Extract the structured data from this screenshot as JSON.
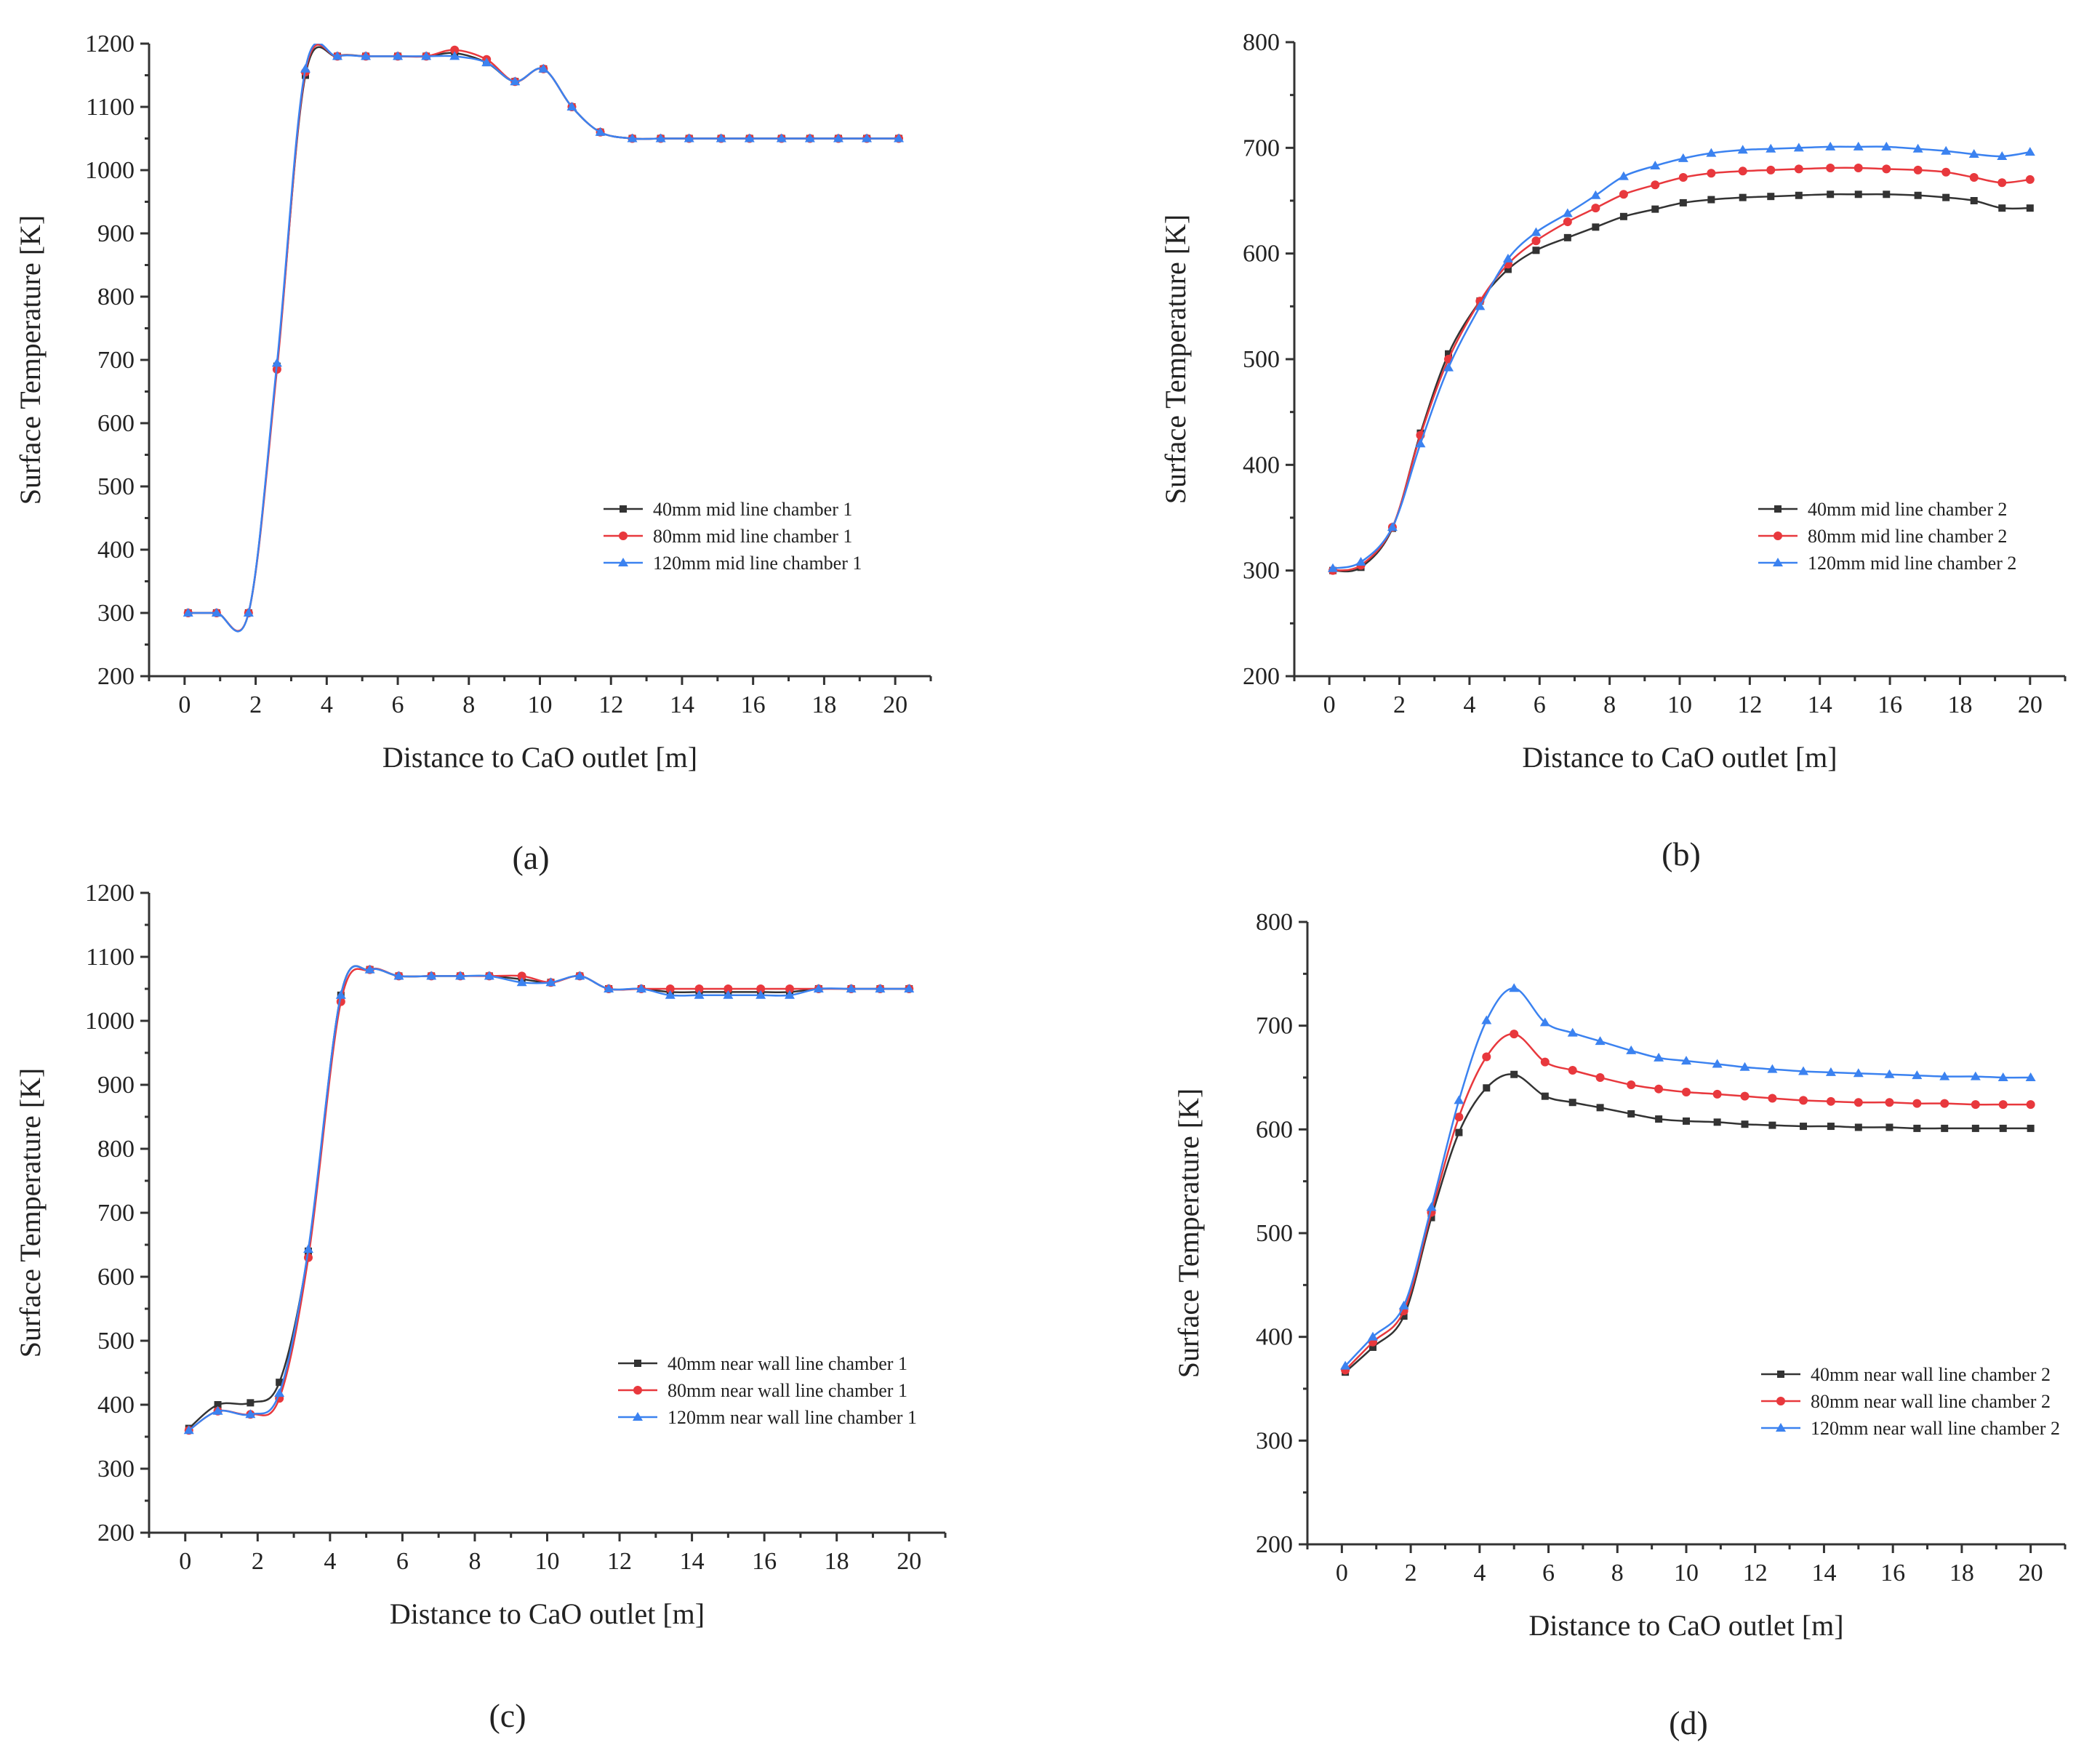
{
  "chart_data": [
    {
      "id": "a",
      "type": "line",
      "panel_label": "(a)",
      "xlabel": "Distance to  CaO outlet [m]",
      "ylabel": "Surface Temperature [K]",
      "xlim": [
        -1,
        21
      ],
      "ylim": [
        200,
        1200
      ],
      "xticks": [
        0,
        2,
        4,
        6,
        8,
        10,
        12,
        14,
        16,
        18,
        20
      ],
      "yticks": [
        200,
        300,
        400,
        500,
        600,
        700,
        800,
        900,
        1000,
        1100,
        1200
      ],
      "legend_position": "lower-right",
      "series": [
        {
          "name": "40mm mid line chamber 1",
          "color": "#333333",
          "marker": "square",
          "x": [
            0.1,
            0.9,
            1.8,
            2.6,
            3.4,
            4.3,
            5.1,
            6.0,
            6.8,
            7.6,
            8.5,
            9.3,
            10.1,
            10.9,
            11.7,
            12.6,
            13.4,
            14.2,
            15.1,
            15.9,
            16.8,
            17.6,
            18.4,
            19.2,
            20.1
          ],
          "y": [
            300,
            300,
            300,
            690,
            1150,
            1180,
            1180,
            1180,
            1180,
            1185,
            1170,
            1140,
            1160,
            1100,
            1060,
            1050,
            1050,
            1050,
            1050,
            1050,
            1050,
            1050,
            1050,
            1050,
            1050
          ]
        },
        {
          "name": "80mm mid line chamber 1",
          "color": "#e8383d",
          "marker": "circle",
          "x": [
            0.1,
            0.9,
            1.8,
            2.6,
            3.4,
            4.3,
            5.1,
            6.0,
            6.8,
            7.6,
            8.5,
            9.3,
            10.1,
            10.9,
            11.7,
            12.6,
            13.4,
            14.2,
            15.1,
            15.9,
            16.8,
            17.6,
            18.4,
            19.2,
            20.1
          ],
          "y": [
            300,
            300,
            300,
            685,
            1155,
            1180,
            1180,
            1180,
            1180,
            1190,
            1175,
            1140,
            1160,
            1100,
            1060,
            1050,
            1050,
            1050,
            1050,
            1050,
            1050,
            1050,
            1050,
            1050,
            1050
          ]
        },
        {
          "name": "120mm mid line chamber 1",
          "color": "#3b82f0",
          "marker": "triangle",
          "x": [
            0.1,
            0.9,
            1.8,
            2.6,
            3.4,
            4.3,
            5.1,
            6.0,
            6.8,
            7.6,
            8.5,
            9.3,
            10.1,
            10.9,
            11.7,
            12.6,
            13.4,
            14.2,
            15.1,
            15.9,
            16.8,
            17.6,
            18.4,
            19.2,
            20.1
          ],
          "y": [
            300,
            300,
            300,
            695,
            1160,
            1180,
            1180,
            1180,
            1180,
            1180,
            1170,
            1140,
            1160,
            1100,
            1060,
            1050,
            1050,
            1050,
            1050,
            1050,
            1050,
            1050,
            1050,
            1050,
            1050
          ]
        }
      ]
    },
    {
      "id": "b",
      "type": "line",
      "panel_label": "(b)",
      "xlabel": "Distance to  CaO outlet [m]",
      "ylabel": "Surface Temperature [K]",
      "xlim": [
        -1,
        21
      ],
      "ylim": [
        200,
        800
      ],
      "xticks": [
        0,
        2,
        4,
        6,
        8,
        10,
        12,
        14,
        16,
        18,
        20
      ],
      "yticks": [
        200,
        300,
        400,
        500,
        600,
        700,
        800
      ],
      "legend_position": "lower-right",
      "series": [
        {
          "name": "40mm mid line chamber 2",
          "color": "#333333",
          "marker": "square",
          "x": [
            0.1,
            0.9,
            1.8,
            2.6,
            3.4,
            4.3,
            5.1,
            5.9,
            6.8,
            7.6,
            8.4,
            9.3,
            10.1,
            10.9,
            11.8,
            12.6,
            13.4,
            14.3,
            15.1,
            15.9,
            16.8,
            17.6,
            18.4,
            19.2,
            20.0
          ],
          "y": [
            300,
            303,
            340,
            430,
            505,
            555,
            585,
            603,
            615,
            625,
            635,
            642,
            648,
            651,
            653,
            654,
            655,
            656,
            656,
            656,
            655,
            653,
            650,
            643,
            643
          ]
        },
        {
          "name": "80mm mid line chamber 2",
          "color": "#e8383d",
          "marker": "circle",
          "x": [
            0.1,
            0.9,
            1.8,
            2.6,
            3.4,
            4.3,
            5.1,
            5.9,
            6.8,
            7.6,
            8.4,
            9.3,
            10.1,
            10.9,
            11.8,
            12.6,
            13.4,
            14.3,
            15.1,
            15.9,
            16.8,
            17.6,
            18.4,
            19.2,
            20.0
          ],
          "y": [
            300,
            305,
            341,
            428,
            500,
            555,
            590,
            612,
            630,
            643,
            656,
            665,
            672,
            676,
            678,
            679,
            680,
            681,
            681,
            680,
            679,
            677,
            672,
            667,
            670
          ]
        },
        {
          "name": "120mm mid line chamber 2",
          "color": "#3b82f0",
          "marker": "triangle",
          "x": [
            0.1,
            0.9,
            1.8,
            2.6,
            3.4,
            4.3,
            5.1,
            5.9,
            6.8,
            7.6,
            8.4,
            9.3,
            10.1,
            10.9,
            11.8,
            12.6,
            13.4,
            14.3,
            15.1,
            15.9,
            16.8,
            17.6,
            18.4,
            19.2,
            20.0
          ],
          "y": [
            302,
            308,
            341,
            420,
            492,
            550,
            595,
            620,
            638,
            655,
            673,
            683,
            690,
            695,
            698,
            699,
            700,
            701,
            701,
            701,
            699,
            697,
            694,
            692,
            696
          ]
        }
      ]
    },
    {
      "id": "c",
      "type": "line",
      "panel_label": "(c)",
      "xlabel": "Distance to  CaO outlet [m]",
      "ylabel": "Surface Temperature [K]",
      "xlim": [
        -1,
        21
      ],
      "ylim": [
        200,
        1200
      ],
      "xticks": [
        0,
        2,
        4,
        6,
        8,
        10,
        12,
        14,
        16,
        18,
        20
      ],
      "yticks": [
        200,
        300,
        400,
        500,
        600,
        700,
        800,
        900,
        1000,
        1100,
        1200
      ],
      "legend_position": "lower-right",
      "series": [
        {
          "name": "40mm near wall line chamber 1",
          "color": "#333333",
          "marker": "square",
          "x": [
            0.1,
            0.9,
            1.8,
            2.6,
            3.4,
            4.3,
            5.1,
            5.9,
            6.8,
            7.6,
            8.4,
            9.3,
            10.1,
            10.9,
            11.7,
            12.6,
            13.4,
            14.2,
            15.0,
            15.9,
            16.7,
            17.5,
            18.4,
            19.2,
            20.0
          ],
          "y": [
            363,
            400,
            403,
            435,
            640,
            1040,
            1080,
            1070,
            1070,
            1070,
            1070,
            1065,
            1060,
            1070,
            1050,
            1050,
            1045,
            1045,
            1045,
            1045,
            1045,
            1050,
            1050,
            1050,
            1050
          ]
        },
        {
          "name": "80mm near wall line chamber 1",
          "color": "#e8383d",
          "marker": "circle",
          "x": [
            0.1,
            0.9,
            1.8,
            2.6,
            3.4,
            4.3,
            5.1,
            5.9,
            6.8,
            7.6,
            8.4,
            9.3,
            10.1,
            10.9,
            11.7,
            12.6,
            13.4,
            14.2,
            15.0,
            15.9,
            16.7,
            17.5,
            18.4,
            19.2,
            20.0
          ],
          "y": [
            360,
            390,
            385,
            410,
            630,
            1030,
            1080,
            1070,
            1070,
            1070,
            1070,
            1070,
            1060,
            1070,
            1050,
            1050,
            1050,
            1050,
            1050,
            1050,
            1050,
            1050,
            1050,
            1050,
            1050
          ]
        },
        {
          "name": "120mm near wall line chamber 1",
          "color": "#3b82f0",
          "marker": "triangle",
          "x": [
            0.1,
            0.9,
            1.8,
            2.6,
            3.4,
            4.3,
            5.1,
            5.9,
            6.8,
            7.6,
            8.4,
            9.3,
            10.1,
            10.9,
            11.7,
            12.6,
            13.4,
            14.2,
            15.0,
            15.9,
            16.7,
            17.5,
            18.4,
            19.2,
            20.0
          ],
          "y": [
            360,
            390,
            385,
            418,
            643,
            1040,
            1080,
            1070,
            1070,
            1070,
            1070,
            1060,
            1060,
            1070,
            1050,
            1050,
            1040,
            1040,
            1040,
            1040,
            1040,
            1050,
            1050,
            1050,
            1050
          ]
        }
      ]
    },
    {
      "id": "d",
      "type": "line",
      "panel_label": "(d)",
      "xlabel": "Distance to  CaO outlet [m]",
      "ylabel": "Surface Temperature [K]",
      "xlim": [
        -1,
        21
      ],
      "ylim": [
        200,
        800
      ],
      "xticks": [
        0,
        2,
        4,
        6,
        8,
        10,
        12,
        14,
        16,
        18,
        20
      ],
      "yticks": [
        200,
        300,
        400,
        500,
        600,
        700,
        800
      ],
      "legend_position": "lower-right",
      "series": [
        {
          "name": "40mm near wall line chamber 2",
          "color": "#333333",
          "marker": "square",
          "x": [
            0.1,
            0.9,
            1.8,
            2.6,
            3.4,
            4.2,
            5.0,
            5.9,
            6.7,
            7.5,
            8.4,
            9.2,
            10.0,
            10.9,
            11.7,
            12.5,
            13.4,
            14.2,
            15.0,
            15.9,
            16.7,
            17.5,
            18.4,
            19.2,
            20.0
          ],
          "y": [
            366,
            390,
            420,
            515,
            597,
            640,
            653,
            632,
            626,
            621,
            615,
            610,
            608,
            607,
            605,
            604,
            603,
            603,
            602,
            602,
            601,
            601,
            601,
            601,
            601
          ]
        },
        {
          "name": "80mm near wall line chamber 2",
          "color": "#e8383d",
          "marker": "circle",
          "x": [
            0.1,
            0.9,
            1.8,
            2.6,
            3.4,
            4.2,
            5.0,
            5.9,
            6.7,
            7.5,
            8.4,
            9.2,
            10.0,
            10.9,
            11.7,
            12.5,
            13.4,
            14.2,
            15.0,
            15.9,
            16.7,
            17.5,
            18.4,
            19.2,
            20.0
          ],
          "y": [
            368,
            395,
            425,
            520,
            612,
            670,
            692,
            665,
            657,
            650,
            643,
            639,
            636,
            634,
            632,
            630,
            628,
            627,
            626,
            626,
            625,
            625,
            624,
            624,
            624
          ]
        },
        {
          "name": "120mm near wall line chamber 2",
          "color": "#3b82f0",
          "marker": "triangle",
          "x": [
            0.1,
            0.9,
            1.8,
            2.6,
            3.4,
            4.2,
            5.0,
            5.9,
            6.7,
            7.5,
            8.4,
            9.2,
            10.0,
            10.9,
            11.7,
            12.5,
            13.4,
            14.2,
            15.0,
            15.9,
            16.7,
            17.5,
            18.4,
            19.2,
            20.0
          ],
          "y": [
            372,
            400,
            430,
            525,
            628,
            705,
            736,
            703,
            693,
            685,
            676,
            669,
            666,
            663,
            660,
            658,
            656,
            655,
            654,
            653,
            652,
            651,
            651,
            650,
            650
          ]
        }
      ]
    }
  ]
}
